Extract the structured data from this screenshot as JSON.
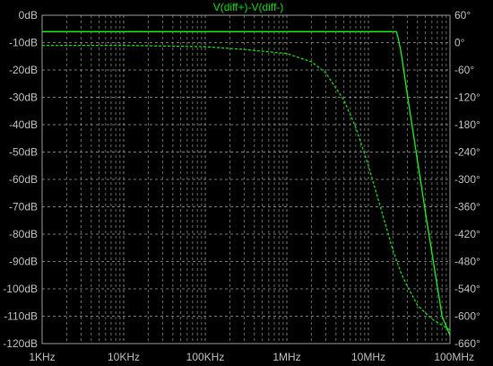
{
  "chart_data": {
    "type": "line",
    "title": "V(diff+)-V(diff-)",
    "x_scale": "log",
    "x_range_hz": [
      1000,
      100000000
    ],
    "x_ticks": [
      {
        "value": 1000,
        "label": "1KHz"
      },
      {
        "value": 10000,
        "label": "10KHz"
      },
      {
        "value": 100000,
        "label": "100KHz"
      },
      {
        "value": 1000000,
        "label": "1MHz"
      },
      {
        "value": 10000000,
        "label": "10MHz"
      },
      {
        "value": 100000000,
        "label": "100MHz"
      }
    ],
    "y_left_range_db": [
      -120,
      0
    ],
    "y_left_ticks": [
      {
        "value": 0,
        "label": "0dB"
      },
      {
        "value": -10,
        "label": "-10dB"
      },
      {
        "value": -20,
        "label": "-20dB"
      },
      {
        "value": -30,
        "label": "-30dB"
      },
      {
        "value": -40,
        "label": "-40dB"
      },
      {
        "value": -50,
        "label": "-50dB"
      },
      {
        "value": -60,
        "label": "-60dB"
      },
      {
        "value": -70,
        "label": "-70dB"
      },
      {
        "value": -80,
        "label": "-80dB"
      },
      {
        "value": -90,
        "label": "-90dB"
      },
      {
        "value": -100,
        "label": "-100dB"
      },
      {
        "value": -110,
        "label": "-110dB"
      },
      {
        "value": -120,
        "label": "-120dB"
      }
    ],
    "y_right_range_deg": [
      -660,
      60
    ],
    "y_right_ticks": [
      {
        "value": 60,
        "label": "60°"
      },
      {
        "value": 0,
        "label": "0°"
      },
      {
        "value": -60,
        "label": "-60°"
      },
      {
        "value": -120,
        "label": "-120°"
      },
      {
        "value": -180,
        "label": "-180°"
      },
      {
        "value": -240,
        "label": "-240°"
      },
      {
        "value": -300,
        "label": "-300°"
      },
      {
        "value": -360,
        "label": "-360°"
      },
      {
        "value": -420,
        "label": "-420°"
      },
      {
        "value": -480,
        "label": "-480°"
      },
      {
        "value": -540,
        "label": "-540°"
      },
      {
        "value": -600,
        "label": "-600°"
      },
      {
        "value": -660,
        "label": "-660°"
      }
    ],
    "grid": true,
    "series": [
      {
        "role": "magnitude",
        "axis": "left",
        "style": "solid",
        "color": "#00ff00",
        "x": [
          1000,
          10000,
          100000,
          1000000,
          10000000,
          15000000,
          20000000,
          22000000,
          23000000,
          25000000,
          30000000,
          50000000,
          80000000,
          100000000
        ],
        "y": [
          -6,
          -6,
          -6,
          -6,
          -6,
          -6,
          -6,
          -6,
          -8,
          -13,
          -29,
          -72,
          -110,
          -117
        ]
      },
      {
        "role": "phase",
        "axis": "right",
        "style": "dashed",
        "color": "#00e000",
        "x": [
          1000,
          10000,
          100000,
          300000,
          1000000,
          2000000,
          3000000,
          5000000,
          7000000,
          10000000,
          15000000,
          20000000,
          25000000,
          30000000,
          40000000,
          60000000,
          100000000
        ],
        "y": [
          -6,
          -6,
          -9,
          -15,
          -24,
          -42,
          -66,
          -126,
          -186,
          -270,
          -378,
          -456,
          -504,
          -534,
          -576,
          -606,
          -630
        ]
      }
    ],
    "series_colors": {
      "magnitude": "#00ff00",
      "phase": "#00e000"
    },
    "background": "#000000",
    "frame_color": "#9a9a9a",
    "grid_color": "#8a8a8a",
    "label_color": "#bdbdbd"
  }
}
